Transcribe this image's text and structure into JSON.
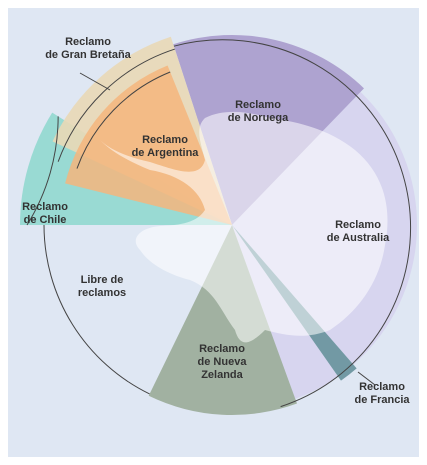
{
  "regions": [
    {
      "label": [
        "Reclamo",
        "de Gran Bretaña"
      ]
    },
    {
      "label": [
        "Reclamo",
        "de Noruega"
      ]
    },
    {
      "label": [
        "Reclamo",
        "de Argentina"
      ]
    },
    {
      "label": [
        "Reclamo",
        "de Chile"
      ]
    },
    {
      "label": [
        "Reclamo",
        "de Australia"
      ]
    },
    {
      "label": [
        "Libre de",
        "reclamos"
      ]
    },
    {
      "label": [
        "Reclamo",
        "de Nueva",
        "Zelanda"
      ]
    },
    {
      "label": [
        "Reclamo",
        "de Francia"
      ]
    }
  ]
}
